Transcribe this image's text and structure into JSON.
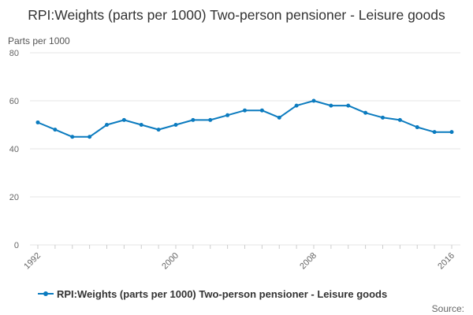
{
  "chart_data": {
    "type": "line",
    "title": "RPI:Weights (parts per 1000) Two-person pensioner - Leisure goods",
    "ylabel": "Parts per 1000",
    "xlabel": "",
    "ylim": [
      0,
      80
    ],
    "yticks": [
      0,
      20,
      40,
      60,
      80
    ],
    "xticks": [
      "1992",
      "2000",
      "2008",
      "2016"
    ],
    "grid": true,
    "legend_position": "bottom",
    "series": [
      {
        "name": "RPI:Weights (parts per 1000) Two-person pensioner - Leisure goods",
        "color": "#0b7bbf",
        "x": [
          1992,
          1993,
          1994,
          1995,
          1996,
          1997,
          1998,
          1999,
          2000,
          2001,
          2002,
          2003,
          2004,
          2005,
          2006,
          2007,
          2008,
          2009,
          2010,
          2011,
          2012,
          2013,
          2014,
          2015,
          2016
        ],
        "values": [
          51,
          48,
          45,
          45,
          50,
          52,
          50,
          48,
          50,
          52,
          52,
          54,
          56,
          56,
          53,
          58,
          60,
          58,
          58,
          55,
          53,
          52,
          49,
          47,
          47
        ]
      }
    ],
    "source_label": "Source:"
  }
}
